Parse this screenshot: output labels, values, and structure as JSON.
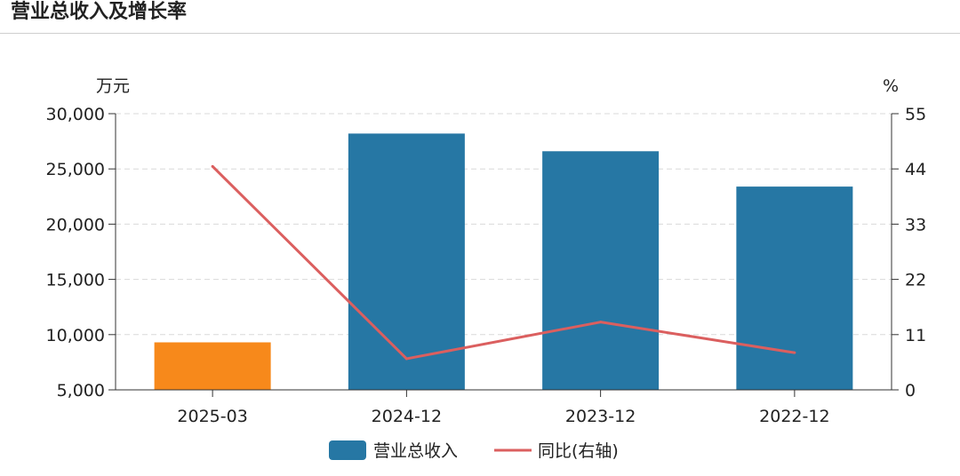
{
  "header": {
    "title": "营业总收入及增长率"
  },
  "colors": {
    "bar": "#2677a4",
    "highlight": "#f7891b",
    "line": "#db5f5f",
    "grid": "#d9d9d9",
    "axis": "#333333"
  },
  "chart_data": {
    "type": "bar",
    "title": "营业总收入及增长率",
    "categories": [
      "2025-03",
      "2024-12",
      "2023-12",
      "2022-12"
    ],
    "highlight_index": 0,
    "series": [
      {
        "name": "营业总收入",
        "type": "bar",
        "axis": "left",
        "values": [
          9300,
          28200,
          26600,
          23400
        ]
      },
      {
        "name": "同比(右轴)",
        "type": "line",
        "axis": "right",
        "values": [
          44.5,
          6.2,
          13.5,
          7.4
        ]
      }
    ],
    "y_left": {
      "unit": "万元",
      "min": 5000,
      "max": 30000,
      "ticks": [
        5000,
        10000,
        15000,
        20000,
        25000,
        30000
      ],
      "tick_labels": [
        "5,000",
        "10,000",
        "15,000",
        "20,000",
        "25,000",
        "30,000"
      ]
    },
    "y_right": {
      "unit": "%",
      "min": 0,
      "max": 55,
      "ticks": [
        0,
        11,
        22,
        33,
        44,
        55
      ],
      "tick_labels": [
        "0",
        "11",
        "22",
        "33",
        "44",
        "55"
      ]
    },
    "grid": true,
    "legend": {
      "position": "bottom-center",
      "items": [
        "营业总收入",
        "同比(右轴)"
      ]
    }
  }
}
